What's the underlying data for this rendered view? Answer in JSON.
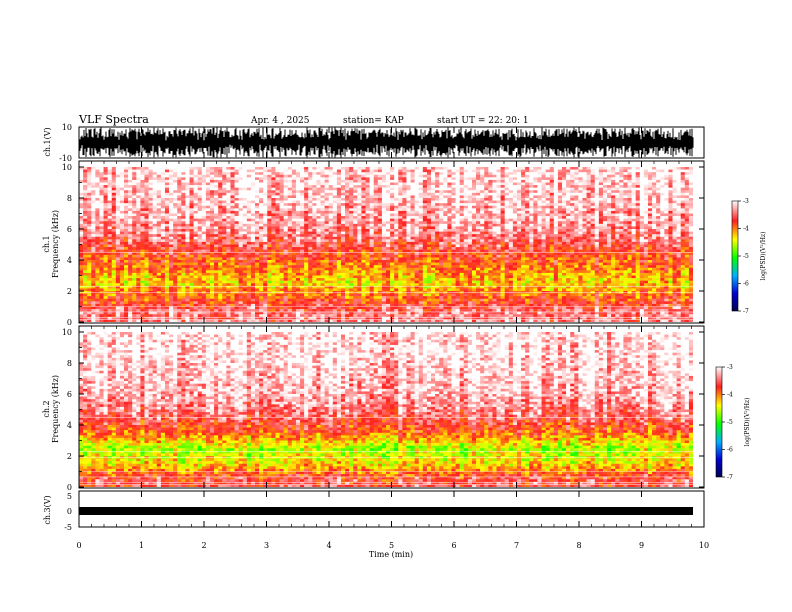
{
  "header": {
    "title": "VLF Spectra",
    "date": "Apr. 4 , 2025",
    "station": "station= KAP",
    "start": "start  UT =   22: 20: 1"
  },
  "colors": {
    "spectrum_low": "#ffffff",
    "spectrum_mid": "#ff2a2a",
    "spectrum_high": "#ffea00",
    "spectrum_peak": "#4cd400",
    "colorbar": [
      "#ffffff",
      "#ff0000",
      "#ffff00",
      "#00ff00",
      "#00a0ff",
      "#0000c8",
      "#000060"
    ]
  },
  "chart_data": [
    {
      "type": "line",
      "name": "ch1-waveform",
      "ylabel": "ch.1(V)",
      "ylim": [
        -10,
        10
      ],
      "yticks": [
        "10",
        "-10"
      ],
      "description_values": {
        "amplitude_min": -10,
        "amplitude_max": 10
      }
    },
    {
      "type": "heatmap",
      "name": "ch1-spectrogram",
      "ylabel": "ch.1\nFrequency (kHz)",
      "ylim": [
        0,
        10
      ],
      "yticks": [
        "0",
        "2",
        "4",
        "6",
        "8",
        "10"
      ],
      "xlim": [
        0,
        10
      ],
      "colorbar": {
        "label": "log(PSD)(V²/Hz)",
        "ticks": [
          "-3",
          "-4",
          "-5",
          "-6",
          "-7"
        ],
        "range": [
          -7,
          -3
        ]
      },
      "band_profile_khz": [
        {
          "f": 0.5,
          "level": -3.4
        },
        {
          "f": 1.5,
          "level": -3.8
        },
        {
          "f": 2.5,
          "level": -4.3
        },
        {
          "f": 3.5,
          "level": -4.0
        },
        {
          "f": 4.5,
          "level": -3.7
        },
        {
          "f": 6.0,
          "level": -3.3
        },
        {
          "f": 8.5,
          "level": -3.1
        }
      ]
    },
    {
      "type": "heatmap",
      "name": "ch2-spectrogram",
      "ylabel": "ch.2\nFrequency (kHz)",
      "ylim": [
        0,
        10
      ],
      "yticks": [
        "0",
        "2",
        "4",
        "6",
        "8",
        "10"
      ],
      "xlim": [
        0,
        10
      ],
      "colorbar": {
        "label": "log(PSD)(V²/Hz)",
        "ticks": [
          "-3",
          "-4",
          "-5",
          "-6",
          "-7"
        ],
        "range": [
          -7,
          -3
        ]
      },
      "band_profile_khz": [
        {
          "f": 0.5,
          "level": -3.6
        },
        {
          "f": 1.5,
          "level": -4.3
        },
        {
          "f": 2.5,
          "level": -4.6
        },
        {
          "f": 3.5,
          "level": -3.9
        },
        {
          "f": 4.5,
          "level": -3.5
        },
        {
          "f": 6.0,
          "level": -3.2
        },
        {
          "f": 8.5,
          "level": -3.05
        }
      ]
    },
    {
      "type": "line",
      "name": "ch3-waveform",
      "ylabel": "ch.3(V)",
      "ylim": [
        -5,
        5
      ],
      "yticks": [
        "5",
        "0",
        "-5"
      ],
      "xlabel": "Time (min)",
      "xlim": [
        0,
        10
      ],
      "xticks": [
        "0",
        "1",
        "2",
        "3",
        "4",
        "5",
        "6",
        "7",
        "8",
        "9",
        "10"
      ],
      "description_values": {
        "amplitude_min": -0.5,
        "amplitude_max": 0.5
      }
    }
  ]
}
